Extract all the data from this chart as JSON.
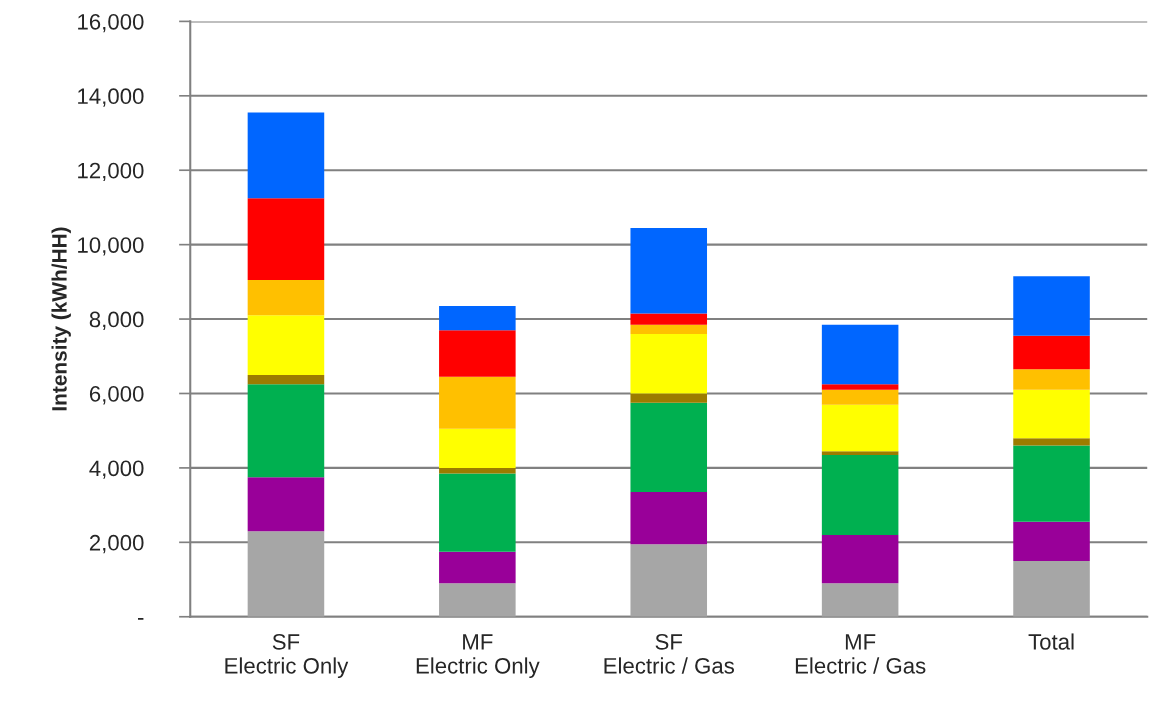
{
  "chart_data": {
    "type": "bar",
    "stacked": true,
    "ylabel": "Intensity (kWh/HH)",
    "categories": [
      "SF\nElectric Only",
      "MF\nElectric Only",
      "SF\nElectric / Gas",
      "MF\nElectric / Gas",
      "Total"
    ],
    "series": [
      {
        "color": "#a6a6a6",
        "values": [
          2300,
          900,
          1950,
          900,
          1500
        ]
      },
      {
        "color": "#990099",
        "values": [
          1450,
          850,
          1400,
          1300,
          1050
        ]
      },
      {
        "color": "#00b050",
        "values": [
          2500,
          2100,
          2400,
          2150,
          2050
        ]
      },
      {
        "color": "#9c7c00",
        "values": [
          250,
          150,
          250,
          100,
          200
        ]
      },
      {
        "color": "#ffff00",
        "values": [
          1600,
          1050,
          1600,
          1250,
          1300
        ]
      },
      {
        "color": "#ffc000",
        "values": [
          950,
          1400,
          250,
          400,
          550
        ]
      },
      {
        "color": "#ff0000",
        "values": [
          2200,
          1250,
          300,
          150,
          900
        ]
      },
      {
        "color": "#0066ff",
        "values": [
          2300,
          650,
          2300,
          1600,
          1600
        ]
      }
    ],
    "ylim": [
      0,
      16000
    ],
    "yticks": [
      {
        "value": 0,
        "label": "-"
      },
      {
        "value": 2000,
        "label": "2,000"
      },
      {
        "value": 4000,
        "label": "4,000"
      },
      {
        "value": 6000,
        "label": "6,000"
      },
      {
        "value": 8000,
        "label": "8,000"
      },
      {
        "value": 10000,
        "label": "10,000"
      },
      {
        "value": 12000,
        "label": "12,000"
      },
      {
        "value": 14000,
        "label": "14,000"
      },
      {
        "value": 16000,
        "label": "16,000"
      }
    ],
    "grid": "y"
  }
}
